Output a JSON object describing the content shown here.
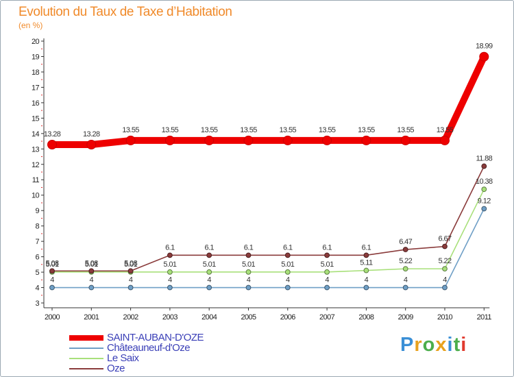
{
  "page": {
    "title": "Evolution du Taux de Taxe d’Habitation",
    "unit": "(en %)"
  },
  "chart_data": {
    "type": "line",
    "title": "Evolution du Taux de Taxe d’Habitation",
    "subtitle": "(en %)",
    "xlabel": "",
    "ylabel": "",
    "categories": [
      "2000",
      "2001",
      "2002",
      "2003",
      "2004",
      "2005",
      "2006",
      "2007",
      "2008",
      "2009",
      "2010",
      "2011"
    ],
    "ylim": [
      3,
      20
    ],
    "yticks": [
      3,
      4,
      5,
      6,
      7,
      8,
      9,
      10,
      11,
      12,
      13,
      14,
      15,
      16,
      17,
      18,
      19,
      20
    ],
    "grid": false,
    "legend_position": "bottom-left",
    "series": [
      {
        "name": "SAINT-AUBAN-D'OZE",
        "color": "#ee0000",
        "emphasis": true,
        "values": [
          13.28,
          13.28,
          13.55,
          13.55,
          13.55,
          13.55,
          13.55,
          13.55,
          13.55,
          13.55,
          13.55,
          18.99
        ],
        "labels": [
          "13.28",
          "13.28",
          "13.55",
          "13.55",
          "13.55",
          "13.55",
          "13.55",
          "13.55",
          "13.55",
          "13.55",
          "13.55",
          "18.99"
        ]
      },
      {
        "name": "Châteauneuf-d'Oze",
        "color": "#6f9fc6",
        "emphasis": false,
        "values": [
          4,
          4,
          4,
          4,
          4,
          4,
          4,
          4,
          4,
          4,
          4,
          9.12
        ],
        "labels": [
          "4",
          "4",
          "4",
          "4",
          "4",
          "4",
          "4",
          "4",
          "4",
          "4",
          "4",
          "9.12"
        ]
      },
      {
        "name": "Le Saix",
        "color": "#a8e07a",
        "emphasis": false,
        "values": [
          5.01,
          5.01,
          5.01,
          5.01,
          5.01,
          5.01,
          5.01,
          5.01,
          5.11,
          5.22,
          5.22,
          10.38
        ],
        "labels": [
          "5.01",
          "5.01",
          "5.01",
          "5.01",
          "5.01",
          "5.01",
          "5.01",
          "5.01",
          "5.11",
          "5.22",
          "5.22",
          "10.38"
        ]
      },
      {
        "name": "Oze",
        "color": "#8a3b3b",
        "emphasis": false,
        "values": [
          5.08,
          5.08,
          5.08,
          6.1,
          6.1,
          6.1,
          6.1,
          6.1,
          6.1,
          6.47,
          6.67,
          11.88
        ],
        "labels": [
          "5.08",
          "5.08",
          "5.08",
          "6.1",
          "6.1",
          "6.1",
          "6.1",
          "6.1",
          "6.1",
          "6.47",
          "6.67",
          "11.88"
        ]
      }
    ]
  },
  "brand": {
    "logo_text": "Proxiti",
    "letter_colors": [
      "#3a8fd6",
      "#e8a21e",
      "#4cae4c",
      "#e8a21e",
      "#3a8fd6",
      "#4cae4c",
      "#e03a2e"
    ]
  }
}
